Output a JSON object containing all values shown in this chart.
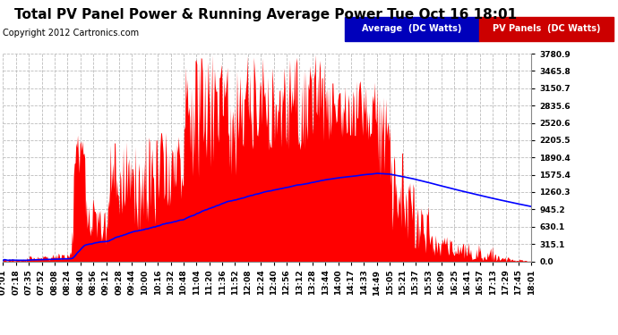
{
  "title": "Total PV Panel Power & Running Average Power Tue Oct 16 18:01",
  "copyright": "Copyright 2012 Cartronics.com",
  "legend_avg": "Average  (DC Watts)",
  "legend_pv": "PV Panels  (DC Watts)",
  "legend_avg_bg": "#0000bb",
  "legend_pv_bg": "#cc0000",
  "pv_color": "#ff0000",
  "avg_color": "#0000ff",
  "bg_color": "#ffffff",
  "grid_color": "#bbbbbb",
  "ylabel_right": [
    "0.0",
    "315.1",
    "630.1",
    "945.2",
    "1260.3",
    "1575.4",
    "1890.4",
    "2205.5",
    "2520.6",
    "2835.6",
    "3150.7",
    "3465.8",
    "3780.9"
  ],
  "ymax": 3780.9,
  "ymin": 0.0,
  "x_tick_labels": [
    "07:01",
    "07:18",
    "07:35",
    "07:52",
    "08:08",
    "08:24",
    "08:40",
    "08:56",
    "09:12",
    "09:28",
    "09:44",
    "10:00",
    "10:16",
    "10:32",
    "10:48",
    "11:04",
    "11:20",
    "11:36",
    "11:52",
    "12:08",
    "12:24",
    "12:40",
    "12:56",
    "13:12",
    "13:28",
    "13:44",
    "14:00",
    "14:17",
    "14:33",
    "14:49",
    "15:05",
    "15:21",
    "15:37",
    "15:53",
    "16:09",
    "16:25",
    "16:41",
    "16:57",
    "17:13",
    "17:29",
    "17:45",
    "18:01"
  ],
  "title_fontsize": 11,
  "copyright_fontsize": 7,
  "tick_fontsize": 6.5,
  "legend_fontsize": 7
}
